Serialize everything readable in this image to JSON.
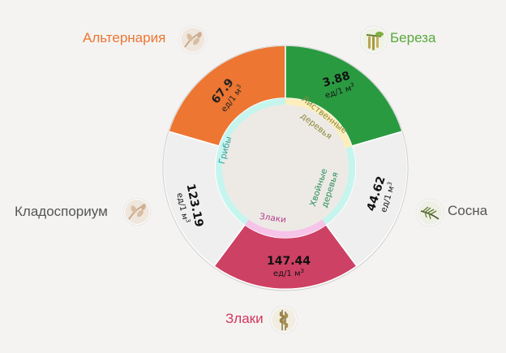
{
  "segments": [
    {
      "id": "alternaria",
      "value": "67.9",
      "unit": "ед/1 м",
      "unit_sup": "3",
      "color": "#ec7632"
    },
    {
      "id": "bereza",
      "value": "3.88",
      "unit": "ед/1 м",
      "unit_sup": "3",
      "color": "#2a9a41"
    },
    {
      "id": "sosna",
      "value": "44.62",
      "unit": "ед/1 м",
      "unit_sup": "3",
      "color": "#efefef"
    },
    {
      "id": "zlaki",
      "value": "147.44",
      "unit": "ед/1 м",
      "unit_sup": "3",
      "color": "#cd4164"
    },
    {
      "id": "kladosporium",
      "value": "123.19",
      "unit": "ед/1 м",
      "unit_sup": "3",
      "color": "#efefef"
    }
  ],
  "groups": {
    "griby": "Грибы",
    "listvennye_line1": "Лиственные",
    "listvennye_line2": "деревья",
    "hvoynye_line1": "Хвойные",
    "hvoynye_line2": "деревья",
    "zlaki": "Злаки"
  },
  "labels": {
    "alternaria": "Альтернария",
    "bereza": "Береза",
    "sosna": "Сосна",
    "zlaki": "Злаки",
    "kladosporium": "Кладоспориум"
  },
  "colors": {
    "alternaria": "#ec7632",
    "bereza": "#5aa83a",
    "sosna": "#555555",
    "zlaki": "#d2355d",
    "kladosporium": "#555555",
    "ring_fungi": "#c6f5ee",
    "ring_deciduous": "#fdeebb",
    "ring_coniferous": "#c6f5ee",
    "ring_grass": "#f6c4e8",
    "center": "#edeae6"
  },
  "icons": {
    "alternaria": "fungus-spore-icon",
    "bereza": "birch-catkin-icon",
    "sosna": "pine-branch-icon",
    "zlaki": "grass-ear-icon",
    "kladosporium": "fungus-spore-icon"
  }
}
